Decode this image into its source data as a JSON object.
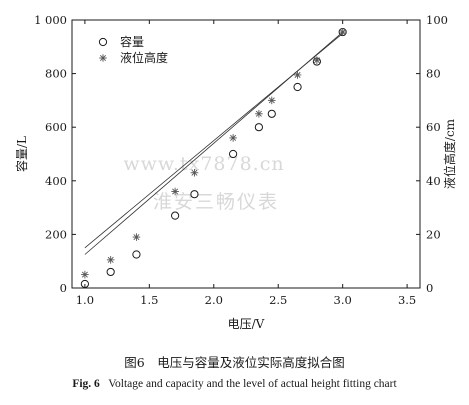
{
  "chart_data": {
    "type": "scatter",
    "x": [
      1.0,
      1.2,
      1.4,
      1.7,
      1.85,
      2.15,
      2.35,
      2.45,
      2.65,
      2.8,
      3.0
    ],
    "xlabel": "电压/V",
    "ylabel_left": "容量/L",
    "ylabel_right": "液位高度/cm",
    "xlim": [
      0.9,
      3.6
    ],
    "ylim_left": [
      0,
      1000
    ],
    "ylim_right": [
      0,
      100
    ],
    "x_ticks": [
      "1.0",
      "1.5",
      "2.0",
      "2.5",
      "3.0",
      "3.5"
    ],
    "y_left_ticks": [
      "0",
      "200",
      "400",
      "600",
      "800",
      "1 000"
    ],
    "y_right_ticks": [
      "0",
      "20",
      "40",
      "60",
      "80",
      "100"
    ],
    "grid": false,
    "legend_position": "top-left",
    "series": [
      {
        "name": "容量",
        "axis": "left",
        "marker": "circle",
        "values": [
          15,
          60,
          125,
          270,
          350,
          500,
          600,
          650,
          750,
          845,
          955
        ],
        "fit": [
          -290,
          415
        ]
      },
      {
        "name": "液位高度",
        "axis": "right",
        "marker": "asterisk",
        "values": [
          5,
          10.5,
          19,
          36,
          43,
          56,
          65,
          70,
          79.5,
          85,
          95.5
        ],
        "fit": [
          -25,
          40
        ]
      }
    ]
  },
  "watermark": {
    "url": "www.tx7878.cn",
    "text": "淮安三畅仪表"
  },
  "caption": {
    "cn": "图6　电压与容量及液位实际高度拟合图",
    "en_label": "Fig. 6",
    "en_text": "Voltage and capacity and the level of actual height fitting chart"
  }
}
